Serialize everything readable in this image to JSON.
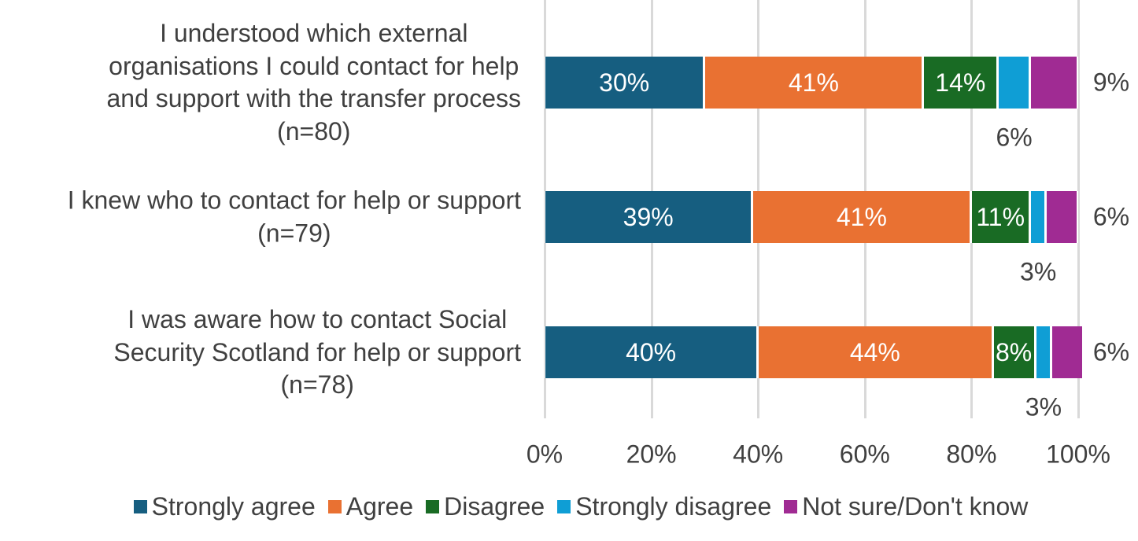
{
  "chart_data": {
    "type": "bar",
    "orientation": "horizontal",
    "stacked": true,
    "categories": [
      "I understood which external\norganisations I could contact for help\nand support with the transfer process\n(n=80)",
      "I knew who to contact for help or support\n(n=79)",
      "I was aware how to contact Social\nSecurity Scotland for help or support\n(n=78)"
    ],
    "series": [
      {
        "name": "Strongly agree",
        "color": "#165e80",
        "values": [
          30,
          39,
          40
        ]
      },
      {
        "name": "Agree",
        "color": "#e97132",
        "values": [
          41,
          41,
          44
        ]
      },
      {
        "name": "Disagree",
        "color": "#196b24",
        "values": [
          14,
          11,
          8
        ]
      },
      {
        "name": "Strongly disagree",
        "color": "#0f9ed5",
        "values": [
          6,
          3,
          3
        ]
      },
      {
        "name": "Not sure/Don't know",
        "color": "#a02b93",
        "values": [
          9,
          6,
          6
        ]
      }
    ],
    "x_ticks": [
      "0%",
      "20%",
      "40%",
      "60%",
      "80%",
      "100%"
    ],
    "xlim": [
      0,
      100
    ],
    "grid": "vertical",
    "legend": "bottom"
  }
}
